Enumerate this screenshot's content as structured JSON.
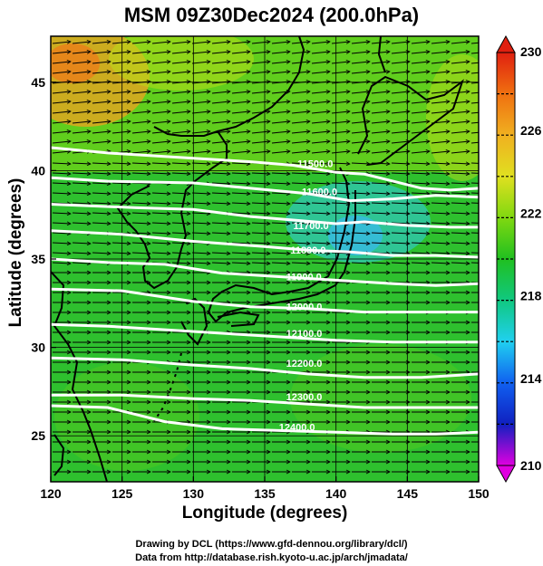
{
  "title": "MSM 09Z30Dec2024 (200.0hPa)",
  "axes": {
    "xlabel": "Longitude (degrees)",
    "ylabel": "Latitude  (degrees)",
    "x_ticks": [
      120,
      125,
      130,
      135,
      140,
      145,
      150
    ],
    "y_ticks": [
      25,
      30,
      35,
      40,
      45
    ],
    "xlim": [
      120,
      150
    ],
    "ylim": [
      22.4,
      47.6
    ]
  },
  "colorbar": {
    "ticks": [
      210,
      214,
      218,
      222,
      226,
      230
    ],
    "min": 210,
    "max": 230,
    "stops": [
      "#e000e0",
      "#1020c0",
      "#1060f0",
      "#20d0f0",
      "#10c880",
      "#20c020",
      "#80d810",
      "#e0e020",
      "#f0b020",
      "#f07010",
      "#e02010"
    ]
  },
  "contours": [
    {
      "label": "11500.0",
      "points": [
        [
          120,
          41.3
        ],
        [
          124,
          41.0
        ],
        [
          130,
          40.7
        ],
        [
          134,
          40.5
        ],
        [
          137,
          40.3
        ],
        [
          140,
          39.9
        ],
        [
          142,
          39.8
        ],
        [
          144,
          39.4
        ],
        [
          146,
          39.0
        ],
        [
          148,
          38.9
        ],
        [
          150,
          39.0
        ]
      ],
      "label_pos": [
        137.3,
        40.2
      ]
    },
    {
      "label": "11600.0",
      "points": [
        [
          120,
          39.6
        ],
        [
          124,
          39.4
        ],
        [
          130,
          39.3
        ],
        [
          134,
          39.0
        ],
        [
          138,
          38.7
        ],
        [
          141,
          38.3
        ],
        [
          144,
          38.4
        ],
        [
          147,
          38.6
        ],
        [
          150,
          38.5
        ]
      ],
      "label_pos": [
        137.6,
        38.6
      ]
    },
    {
      "label": "11700.0",
      "points": [
        [
          120,
          38.1
        ],
        [
          126,
          37.9
        ],
        [
          130,
          37.8
        ],
        [
          134,
          37.4
        ],
        [
          137,
          37.2
        ],
        [
          140,
          37.0
        ],
        [
          142,
          37.1
        ],
        [
          145,
          36.9
        ],
        [
          148,
          36.8
        ],
        [
          150,
          36.8
        ]
      ],
      "label_pos": [
        137.0,
        36.7
      ]
    },
    {
      "label": "11800.0",
      "points": [
        [
          120,
          36.6
        ],
        [
          125,
          36.4
        ],
        [
          130,
          36.0
        ],
        [
          135,
          35.7
        ],
        [
          138,
          35.5
        ],
        [
          141,
          35.4
        ],
        [
          144,
          35.2
        ],
        [
          147,
          35.2
        ],
        [
          150,
          35.1
        ]
      ],
      "label_pos": [
        136.8,
        35.3
      ]
    },
    {
      "label": "11900.0",
      "points": [
        [
          120,
          35.0
        ],
        [
          124,
          34.8
        ],
        [
          128,
          34.7
        ],
        [
          132,
          34.2
        ],
        [
          136,
          34.0
        ],
        [
          140,
          33.8
        ],
        [
          144,
          33.6
        ],
        [
          147,
          33.5
        ],
        [
          150,
          33.6
        ]
      ],
      "label_pos": [
        136.5,
        33.8
      ]
    },
    {
      "label": "12000.0",
      "points": [
        [
          120,
          33.3
        ],
        [
          125,
          33.2
        ],
        [
          130,
          32.6
        ],
        [
          134,
          32.3
        ],
        [
          138,
          32.2
        ],
        [
          142,
          32.0
        ],
        [
          146,
          32.0
        ],
        [
          150,
          32.0
        ]
      ],
      "label_pos": [
        136.5,
        32.1
      ]
    },
    {
      "label": "12100.0",
      "points": [
        [
          120,
          31.3
        ],
        [
          124,
          31.2
        ],
        [
          128,
          31.0
        ],
        [
          132,
          30.8
        ],
        [
          136,
          30.6
        ],
        [
          140,
          30.4
        ],
        [
          144,
          30.3
        ],
        [
          147,
          30.3
        ],
        [
          150,
          30.3
        ]
      ],
      "label_pos": [
        136.5,
        30.6
      ]
    },
    {
      "label": "12200.0",
      "points": [
        [
          120,
          29.4
        ],
        [
          125,
          29.3
        ],
        [
          130,
          29.0
        ],
        [
          134,
          28.8
        ],
        [
          138,
          28.5
        ],
        [
          142,
          28.3
        ],
        [
          146,
          28.3
        ],
        [
          150,
          28.5
        ]
      ],
      "label_pos": [
        136.5,
        28.9
      ]
    },
    {
      "label": "12300.0",
      "points": [
        [
          120,
          27.3
        ],
        [
          125,
          27.3
        ],
        [
          130,
          27.1
        ],
        [
          134,
          27.0
        ],
        [
          138,
          26.8
        ],
        [
          142,
          26.6
        ],
        [
          146,
          26.6
        ],
        [
          150,
          26.6
        ]
      ],
      "label_pos": [
        136.5,
        27.0
      ]
    },
    {
      "label": "12400.0",
      "points": [
        [
          120,
          26.7
        ],
        [
          124,
          26.6
        ],
        [
          128,
          25.8
        ],
        [
          132,
          25.4
        ],
        [
          136,
          25.3
        ],
        [
          140,
          25.2
        ],
        [
          144,
          25.1
        ],
        [
          147,
          25.1
        ],
        [
          150,
          25.2
        ]
      ],
      "label_pos": [
        136.0,
        25.3
      ]
    }
  ],
  "credits": {
    "line1": "Drawing by DCL (https://www.gfd-dennou.org/library/dcl/)",
    "line2": "Data from http://database.rish.kyoto-u.ac.jp/arch/jmadata/"
  }
}
